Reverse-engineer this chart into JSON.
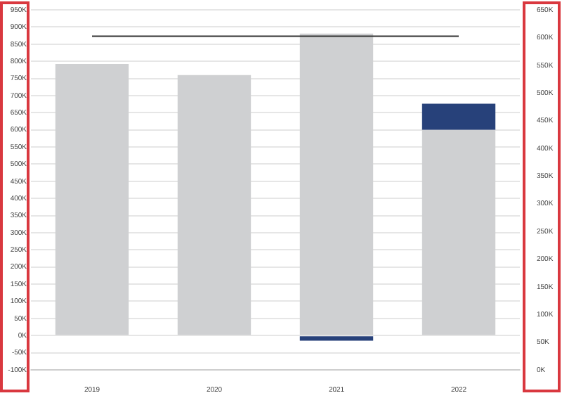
{
  "chart_data": {
    "type": "bar",
    "stacked": true,
    "categories": [
      "2019",
      "2020",
      "2021",
      "2022"
    ],
    "series": [
      {
        "name": null,
        "color": "#cfd0d2",
        "values": [
          792000,
          760000,
          881000,
          600000
        ]
      },
      {
        "color": "#27417a",
        "values": [
          null,
          null,
          -15000,
          76000
        ]
      }
    ],
    "ylim": [
      -100000,
      950000
    ],
    "yticks": [
      {
        "value": -100000,
        "label": "-100K"
      },
      {
        "value": -50000,
        "label": "-50K"
      },
      {
        "value": 0,
        "label": "0K"
      },
      {
        "value": 50000,
        "label": "50K"
      },
      {
        "value": 100000,
        "label": "100K"
      },
      {
        "value": 150000,
        "label": "150K"
      },
      {
        "value": 200000,
        "label": "200K"
      },
      {
        "value": 250000,
        "label": "250K"
      },
      {
        "value": 300000,
        "label": "300K"
      },
      {
        "value": 350000,
        "label": "350K"
      },
      {
        "value": 400000,
        "label": "400K"
      },
      {
        "value": 450000,
        "label": "450K"
      },
      {
        "value": 500000,
        "label": "500K"
      },
      {
        "value": 550000,
        "label": "550K"
      },
      {
        "value": 600000,
        "label": "600K"
      },
      {
        "value": 650000,
        "label": "650K"
      },
      {
        "value": 700000,
        "label": "700K"
      },
      {
        "value": 750000,
        "label": "750K"
      },
      {
        "value": 800000,
        "label": "800K"
      },
      {
        "value": 850000,
        "label": "850K"
      },
      {
        "value": 900000,
        "label": "900K"
      },
      {
        "value": 950000,
        "label": "950K"
      }
    ],
    "y2lim": [
      0,
      650000
    ],
    "y2ticks": [
      {
        "value": 0,
        "label": "0K"
      },
      {
        "value": 50000,
        "label": "50K"
      },
      {
        "value": 100000,
        "label": "100K"
      },
      {
        "value": 150000,
        "label": "150K"
      },
      {
        "value": 200000,
        "label": "200K"
      },
      {
        "value": 250000,
        "label": "250K"
      },
      {
        "value": 300000,
        "label": "300K"
      },
      {
        "value": 350000,
        "label": "350K"
      },
      {
        "value": 400000,
        "label": "400K"
      },
      {
        "value": 450000,
        "label": "450K"
      },
      {
        "value": 500000,
        "label": "500K"
      },
      {
        "value": 550000,
        "label": "550K"
      },
      {
        "value": 600000,
        "label": "600K"
      },
      {
        "value": 650000,
        "label": "650K"
      }
    ],
    "ref_lines": [
      {
        "axis": "y",
        "value": 873000,
        "color": "#333333"
      }
    ],
    "grid": "y",
    "legend": false
  }
}
